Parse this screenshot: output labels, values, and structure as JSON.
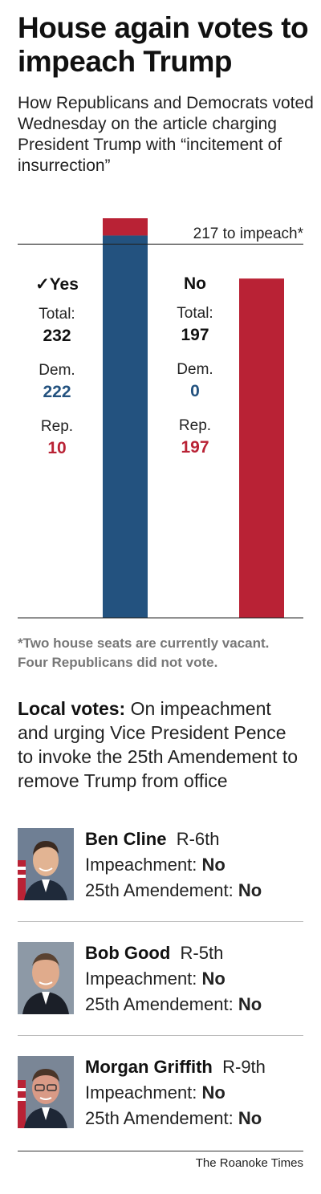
{
  "headline": "House again votes to impeach Trump",
  "subtitle": "How Republicans and Democrats voted Wednesday on the article charging President Trump with “incitement of insurrection”",
  "colors": {
    "dem": "#23527f",
    "rep": "#b92235"
  },
  "chart_data": {
    "type": "bar",
    "threshold": {
      "value": 217,
      "label": "217 to impeach*"
    },
    "ylim": [
      0,
      232
    ],
    "bars": [
      {
        "vote": "✓Yes",
        "total_label": "Total:",
        "total": 232,
        "segments": [
          {
            "party_label": "Dem.",
            "value": 222
          },
          {
            "party_label": "Rep.",
            "value": 10
          }
        ]
      },
      {
        "vote": "No",
        "total_label": "Total:",
        "total": 197,
        "segments": [
          {
            "party_label": "Dem.",
            "value": 0
          },
          {
            "party_label": "Rep.",
            "value": 197
          }
        ]
      }
    ]
  },
  "footnote": [
    "*Two house seats are currently vacant.",
    "Four Republicans did not vote."
  ],
  "local": {
    "heading": "Local votes:",
    "text": " On impeachment and urging Vice President Pence to invoke the 25th Amendement to remove Trump from office"
  },
  "people": [
    {
      "name": "Ben Cline",
      "district": "R-6th",
      "impeach_label": "Impeachment:",
      "impeach_vote": "No",
      "amend_label": "25th Amendement:",
      "amend_vote": "No"
    },
    {
      "name": "Bob Good",
      "district": "R-5th",
      "impeach_label": "Impeachment:",
      "impeach_vote": "No",
      "amend_label": "25th Amendement:",
      "amend_vote": "No"
    },
    {
      "name": "Morgan Griffith",
      "district": "R-9th",
      "impeach_label": "Impeachment:",
      "impeach_vote": "No",
      "amend_label": "25th Amendement:",
      "amend_vote": "No"
    }
  ],
  "credit": "The Roanoke Times"
}
